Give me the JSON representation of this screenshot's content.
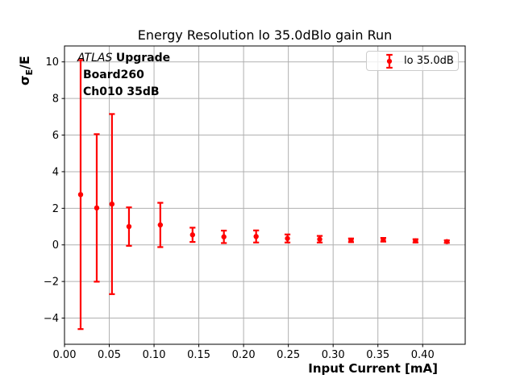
{
  "chart_data": {
    "type": "scatter",
    "title": "Energy Resolution lo 35.0dBlo gain Run",
    "xlabel": "Input Current [mA]",
    "ylabel": "σ_E/E",
    "ylabel_parts": {
      "sigma": "σ",
      "sub": "E",
      "rest": "/E"
    },
    "legend": {
      "label": "lo 35.0dB",
      "position": "upper right"
    },
    "annotation": {
      "line1_italic": "ATLAS",
      "line1_bold": "Upgrade",
      "line2": "Board260",
      "line3": "Ch010 35dB"
    },
    "marker_color": "#ff0000",
    "grid_color": "#b0b0b0",
    "axis_color": "#000000",
    "grid": true,
    "xlim": [
      0.0,
      0.4475
    ],
    "ylim": [
      -5.43,
      10.87
    ],
    "xticks": {
      "values": [
        0.0,
        0.05,
        0.1,
        0.15,
        0.2,
        0.25,
        0.3,
        0.35,
        0.4
      ],
      "labels": [
        "0.00",
        "0.05",
        "0.10",
        "0.15",
        "0.20",
        "0.25",
        "0.30",
        "0.35",
        "0.40"
      ]
    },
    "yticks": {
      "values": [
        -4,
        -2,
        0,
        2,
        4,
        6,
        8,
        10
      ],
      "labels": [
        "−4",
        "−2",
        "0",
        "2",
        "4",
        "6",
        "8",
        "10"
      ]
    },
    "series": [
      {
        "name": "lo 35.0dB",
        "x": [
          0.018,
          0.036,
          0.053,
          0.072,
          0.107,
          0.143,
          0.178,
          0.214,
          0.249,
          0.285,
          0.32,
          0.356,
          0.392,
          0.427
        ],
        "y": [
          2.75,
          2.02,
          2.23,
          1.0,
          1.09,
          0.55,
          0.44,
          0.46,
          0.35,
          0.31,
          0.25,
          0.28,
          0.22,
          0.18
        ],
        "yerr": [
          7.35,
          4.03,
          4.92,
          1.05,
          1.21,
          0.39,
          0.34,
          0.33,
          0.22,
          0.18,
          0.1,
          0.1,
          0.09,
          0.07
        ]
      }
    ]
  }
}
